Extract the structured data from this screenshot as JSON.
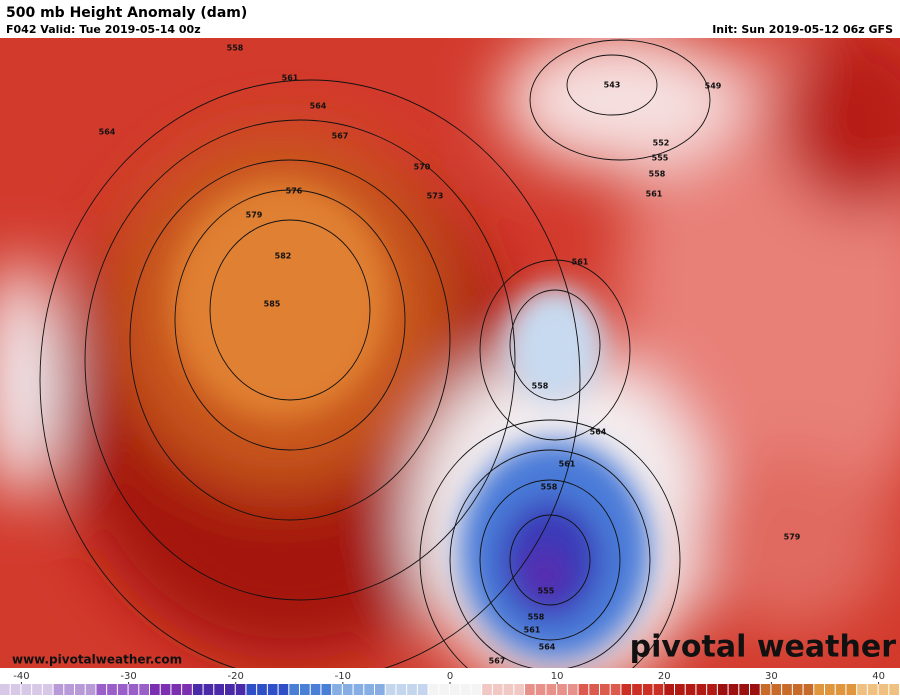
{
  "header": {
    "title": "500 mb Height Anomaly (dam)",
    "valid": "F042 Valid: Tue 2019-05-14 00z",
    "init": "Init: Sun 2019-05-12 06z GFS"
  },
  "map": {
    "contour_labels": [
      "558",
      "561",
      "564",
      "567",
      "564",
      "570",
      "573",
      "576",
      "579",
      "582",
      "585",
      "543",
      "549",
      "552",
      "555",
      "558",
      "561",
      "561",
      "558",
      "564",
      "561",
      "558",
      "555",
      "558",
      "561",
      "564",
      "567",
      "579"
    ]
  },
  "footer": {
    "website": "www.pivotalweather.com",
    "logo": "pivotal weather"
  },
  "colorbar": {
    "lim": [
      -42,
      42
    ],
    "ticks": [
      -40,
      -30,
      -20,
      -10,
      0,
      10,
      20,
      30,
      40
    ],
    "colors": [
      "#d8c8e8",
      "#b89ad8",
      "#9a5fc8",
      "#7a30b0",
      "#4a2aa8",
      "#2f4fc8",
      "#4a7fd8",
      "#86aee4",
      "#c4d6ee",
      "#f4f4f4",
      "#f2c8c4",
      "#e8908a",
      "#dc5a4e",
      "#cc3024",
      "#b41a14",
      "#9c1010",
      "#c86a2a",
      "#e0963c",
      "#f0c080"
    ]
  }
}
